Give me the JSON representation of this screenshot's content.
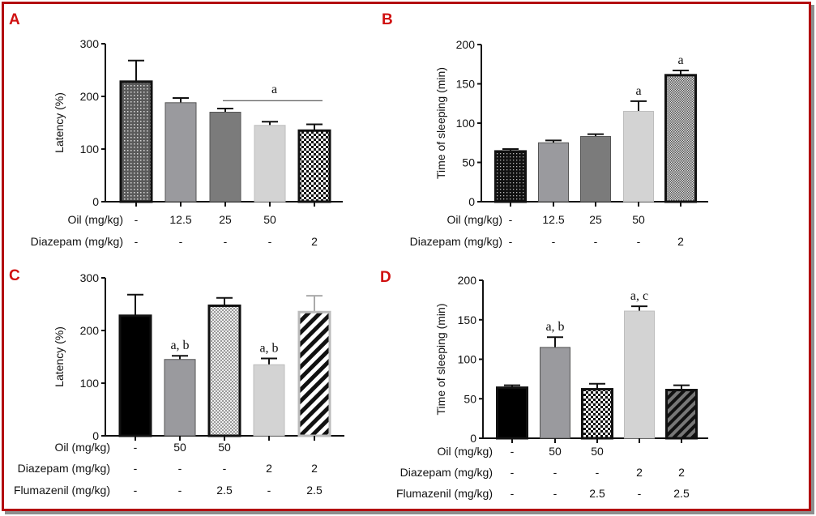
{
  "colors": {
    "frame": "#b30d10",
    "panel_letter": "#d01010",
    "axis": "#111111"
  },
  "chart_data": [
    {
      "panel": "A",
      "type": "bar",
      "ylabel": "Latency (%)",
      "ylim": [
        0,
        300
      ],
      "yticks": [
        0,
        100,
        200,
        300
      ],
      "values": [
        228,
        188,
        170,
        145,
        135
      ],
      "errors": [
        40,
        9,
        7,
        7,
        12
      ],
      "bar_fills": [
        "dots-dark",
        "#9a9a9e",
        "#7b7b7b",
        "#d3d3d3",
        "check-bw"
      ],
      "bar_annotations": [
        "",
        "",
        "",
        "",
        ""
      ],
      "bracket": {
        "from": 2,
        "to": 4,
        "label": "a"
      },
      "rows": [
        {
          "label": "Oil (mg/kg)",
          "cells": [
            "-",
            "12.5",
            "25",
            "50",
            ""
          ]
        },
        {
          "label": "Diazepam (mg/kg)",
          "cells": [
            "-",
            "-",
            "-",
            "-",
            "2"
          ]
        }
      ]
    },
    {
      "panel": "B",
      "type": "bar",
      "ylabel": "Time of sleeping (min)",
      "ylim": [
        0,
        200
      ],
      "yticks": [
        0,
        50,
        100,
        150,
        200
      ],
      "values": [
        64,
        75,
        83,
        115,
        161
      ],
      "errors": [
        3,
        3,
        3,
        13,
        6
      ],
      "bar_fills": [
        "dots-black",
        "#9a9a9e",
        "#7b7b7b",
        "#d3d3d3",
        "check-fine"
      ],
      "bar_annotations": [
        "",
        "",
        "",
        "a",
        "a"
      ],
      "bracket": null,
      "rows": [
        {
          "label": "Oil (mg/kg)",
          "cells": [
            "-",
            "12.5",
            "25",
            "50",
            ""
          ]
        },
        {
          "label": "Diazepam (mg/kg)",
          "cells": [
            "-",
            "-",
            "-",
            "-",
            "2"
          ]
        }
      ]
    },
    {
      "panel": "C",
      "type": "bar",
      "ylabel": "Latency (%)",
      "ylim": [
        0,
        300
      ],
      "yticks": [
        0,
        100,
        200,
        300
      ],
      "values": [
        228,
        145,
        247,
        135,
        235
      ],
      "errors": [
        40,
        7,
        15,
        12,
        31
      ],
      "bar_fills": [
        "#000000",
        "#9a9a9e",
        "check-light",
        "#d3d3d3",
        "stripes"
      ],
      "bar_annotations": [
        "",
        "a, b",
        "",
        "a, b",
        ""
      ],
      "bracket": null,
      "rows": [
        {
          "label": "Oil (mg/kg)",
          "cells": [
            "-",
            "50",
            "50",
            "",
            ""
          ]
        },
        {
          "label": "Diazepam (mg/kg)",
          "cells": [
            "-",
            "-",
            "-",
            "2",
            "2"
          ]
        },
        {
          "label": "Flumazenil (mg/kg)",
          "cells": [
            "-",
            "-",
            "2.5",
            "-",
            "2.5"
          ]
        }
      ]
    },
    {
      "panel": "D",
      "type": "bar",
      "ylabel": "Time of sleeping (min)",
      "ylim": [
        0,
        200
      ],
      "yticks": [
        0,
        50,
        100,
        150,
        200
      ],
      "values": [
        64,
        115,
        62,
        161,
        61
      ],
      "errors": [
        3,
        13,
        7,
        6,
        6
      ],
      "bar_fills": [
        "#000000",
        "#9a9a9e",
        "check-bw",
        "#d3d3d3",
        "stripes-grey"
      ],
      "bar_annotations": [
        "",
        "a, b",
        "",
        "a, c",
        ""
      ],
      "bracket": null,
      "rows": [
        {
          "label": "Oil (mg/kg)",
          "cells": [
            "-",
            "50",
            "50",
            "",
            ""
          ]
        },
        {
          "label": "Diazepam (mg/kg)",
          "cells": [
            "-",
            "-",
            "-",
            "2",
            "2"
          ]
        },
        {
          "label": "Flumazenil (mg/kg)",
          "cells": [
            "-",
            "-",
            "2.5",
            "-",
            "2.5"
          ]
        }
      ]
    }
  ]
}
